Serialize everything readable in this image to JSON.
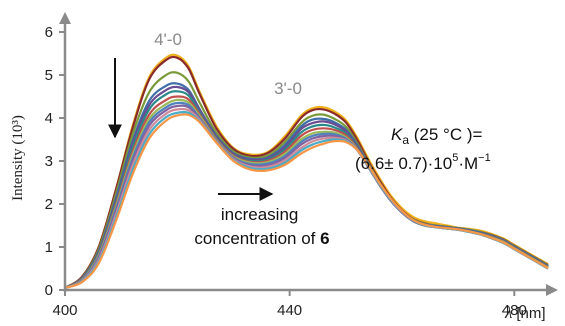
{
  "chart_data": {
    "type": "line",
    "ylabel": "Intensity (10³)",
    "xlabel_var": "λ",
    "xlabel_unit": "[nm]",
    "x_ticks": [
      "400",
      "440",
      "480"
    ],
    "y_ticks": [
      "0",
      "1",
      "2",
      "3",
      "4",
      "5",
      "6"
    ],
    "xlim": [
      400,
      486
    ],
    "ylim": [
      0,
      6
    ],
    "grid": false,
    "annotations": {
      "peak1": "4'-0",
      "peak2": "3'-0",
      "trend_line1": "increasing",
      "trend_line2_prefix": "concentration of ",
      "trend_line2_bold": "6",
      "ka_symbol": "K",
      "ka_subscript": "a",
      "ka_condition": " (25 °C )=",
      "ka_value": "(6.6± 0.7)·10",
      "ka_exp": "5",
      "ka_unit": "·M",
      "ka_unit_exp": "−1"
    },
    "x": [
      400,
      403,
      406,
      409,
      412,
      415,
      418,
      420,
      422,
      424,
      427,
      430,
      433,
      436,
      439,
      442,
      444,
      446,
      448,
      450,
      452,
      454,
      456,
      458,
      460,
      462,
      464,
      466,
      468,
      470,
      472,
      474,
      476,
      478,
      480,
      482,
      484,
      486
    ],
    "series": [
      {
        "color": "#f0b21a",
        "values": [
          0.05,
          0.3,
          1.0,
          2.3,
          3.8,
          4.95,
          5.4,
          5.45,
          5.2,
          4.6,
          3.8,
          3.3,
          3.15,
          3.2,
          3.55,
          4.05,
          4.22,
          4.25,
          4.15,
          3.95,
          3.55,
          3.05,
          2.6,
          2.2,
          1.9,
          1.7,
          1.6,
          1.55,
          1.5,
          1.45,
          1.42,
          1.38,
          1.3,
          1.2,
          1.05,
          0.9,
          0.75,
          0.6
        ]
      },
      {
        "color": "#8b2a2a",
        "values": [
          0.05,
          0.3,
          1.0,
          2.3,
          3.75,
          4.9,
          5.35,
          5.4,
          5.15,
          4.55,
          3.75,
          3.28,
          3.12,
          3.18,
          3.5,
          4.0,
          4.18,
          4.2,
          4.1,
          3.9,
          3.5,
          3.0,
          2.55,
          2.15,
          1.85,
          1.65,
          1.55,
          1.5,
          1.47,
          1.44,
          1.4,
          1.35,
          1.28,
          1.18,
          1.03,
          0.88,
          0.73,
          0.58
        ]
      },
      {
        "color": "#7a9a3a",
        "values": [
          0.05,
          0.28,
          0.95,
          2.2,
          3.6,
          4.6,
          5.0,
          5.05,
          4.85,
          4.35,
          3.65,
          3.22,
          3.08,
          3.12,
          3.42,
          3.88,
          4.05,
          4.08,
          3.98,
          3.8,
          3.42,
          2.95,
          2.5,
          2.12,
          1.83,
          1.64,
          1.54,
          1.5,
          1.47,
          1.44,
          1.4,
          1.35,
          1.27,
          1.17,
          1.02,
          0.87,
          0.72,
          0.57
        ]
      },
      {
        "color": "#3d6ea8",
        "values": [
          0.05,
          0.27,
          0.9,
          2.1,
          3.45,
          4.4,
          4.75,
          4.8,
          4.65,
          4.2,
          3.58,
          3.18,
          3.05,
          3.08,
          3.35,
          3.8,
          3.96,
          3.98,
          3.9,
          3.73,
          3.38,
          2.92,
          2.48,
          2.1,
          1.82,
          1.63,
          1.53,
          1.49,
          1.46,
          1.43,
          1.39,
          1.34,
          1.26,
          1.16,
          1.01,
          0.86,
          0.71,
          0.56
        ]
      },
      {
        "color": "#6a4c93",
        "values": [
          0.05,
          0.26,
          0.88,
          2.05,
          3.38,
          4.3,
          4.65,
          4.72,
          4.6,
          4.18,
          3.56,
          3.16,
          3.03,
          3.06,
          3.3,
          3.74,
          3.88,
          3.92,
          3.85,
          3.69,
          3.35,
          2.9,
          2.46,
          2.09,
          1.81,
          1.62,
          1.52,
          1.48,
          1.45,
          1.42,
          1.38,
          1.33,
          1.25,
          1.15,
          1.0,
          0.85,
          0.7,
          0.55
        ]
      },
      {
        "color": "#2a8a8a",
        "values": [
          0.05,
          0.25,
          0.85,
          2.0,
          3.3,
          4.2,
          4.55,
          4.62,
          4.52,
          4.12,
          3.52,
          3.13,
          3.0,
          3.03,
          3.25,
          3.66,
          3.8,
          3.84,
          3.78,
          3.64,
          3.32,
          2.88,
          2.45,
          2.08,
          1.8,
          1.61,
          1.51,
          1.47,
          1.44,
          1.41,
          1.37,
          1.32,
          1.24,
          1.14,
          0.99,
          0.84,
          0.69,
          0.54
        ]
      },
      {
        "color": "#c0504d",
        "values": [
          0.05,
          0.24,
          0.82,
          1.95,
          3.2,
          4.08,
          4.42,
          4.5,
          4.43,
          4.08,
          3.5,
          3.12,
          2.98,
          3.0,
          3.2,
          3.58,
          3.72,
          3.76,
          3.72,
          3.6,
          3.3,
          2.87,
          2.45,
          2.08,
          1.8,
          1.6,
          1.5,
          1.46,
          1.43,
          1.4,
          1.36,
          1.31,
          1.23,
          1.13,
          0.98,
          0.83,
          0.68,
          0.53
        ]
      },
      {
        "color": "#9bbb59",
        "values": [
          0.05,
          0.23,
          0.8,
          1.9,
          3.12,
          3.98,
          4.32,
          4.42,
          4.36,
          4.04,
          3.48,
          3.1,
          2.96,
          2.97,
          3.15,
          3.5,
          3.64,
          3.68,
          3.66,
          3.55,
          3.28,
          2.86,
          2.44,
          2.08,
          1.8,
          1.6,
          1.5,
          1.46,
          1.43,
          1.4,
          1.36,
          1.3,
          1.22,
          1.12,
          0.97,
          0.82,
          0.67,
          0.52
        ]
      },
      {
        "color": "#4f81bd",
        "values": [
          0.05,
          0.22,
          0.77,
          1.85,
          3.05,
          3.9,
          4.25,
          4.35,
          4.3,
          4.0,
          3.46,
          3.08,
          2.93,
          2.94,
          3.1,
          3.44,
          3.58,
          3.63,
          3.62,
          3.52,
          3.27,
          2.86,
          2.44,
          2.08,
          1.8,
          1.6,
          1.5,
          1.46,
          1.43,
          1.4,
          1.35,
          1.3,
          1.21,
          1.11,
          0.96,
          0.81,
          0.66,
          0.51
        ]
      },
      {
        "color": "#8064a2",
        "values": [
          0.05,
          0.21,
          0.74,
          1.8,
          2.98,
          3.82,
          4.18,
          4.28,
          4.25,
          3.98,
          3.45,
          3.06,
          2.9,
          2.9,
          3.06,
          3.38,
          3.52,
          3.58,
          3.58,
          3.5,
          3.26,
          2.86,
          2.45,
          2.09,
          1.81,
          1.61,
          1.5,
          1.46,
          1.43,
          1.4,
          1.35,
          1.29,
          1.2,
          1.1,
          0.95,
          0.8,
          0.65,
          0.5
        ]
      },
      {
        "color": "#d08a9a",
        "values": [
          0.05,
          0.2,
          0.7,
          1.72,
          2.88,
          3.72,
          4.1,
          4.2,
          4.18,
          3.95,
          3.44,
          3.04,
          2.87,
          2.86,
          3.0,
          3.3,
          3.45,
          3.52,
          3.54,
          3.48,
          3.26,
          2.87,
          2.46,
          2.1,
          1.82,
          1.62,
          1.51,
          1.46,
          1.43,
          1.4,
          1.35,
          1.29,
          1.2,
          1.1,
          0.95,
          0.8,
          0.65,
          0.5
        ]
      },
      {
        "color": "#4bacc6",
        "values": [
          0.05,
          0.19,
          0.66,
          1.65,
          2.78,
          3.62,
          4.02,
          4.12,
          4.12,
          3.92,
          3.43,
          3.02,
          2.84,
          2.82,
          2.95,
          3.24,
          3.38,
          3.46,
          3.5,
          3.46,
          3.26,
          2.88,
          2.47,
          2.11,
          1.83,
          1.62,
          1.51,
          1.46,
          1.43,
          1.4,
          1.35,
          1.29,
          1.2,
          1.1,
          0.95,
          0.8,
          0.65,
          0.5
        ]
      },
      {
        "color": "#f79646",
        "values": [
          0.05,
          0.18,
          0.62,
          1.58,
          2.68,
          3.52,
          3.94,
          4.06,
          4.07,
          3.9,
          3.42,
          3.0,
          2.8,
          2.78,
          2.9,
          3.17,
          3.31,
          3.4,
          3.46,
          3.44,
          3.26,
          2.9,
          2.49,
          2.13,
          1.84,
          1.63,
          1.52,
          1.47,
          1.44,
          1.41,
          1.36,
          1.3,
          1.21,
          1.11,
          0.96,
          0.81,
          0.66,
          0.51
        ]
      }
    ]
  }
}
